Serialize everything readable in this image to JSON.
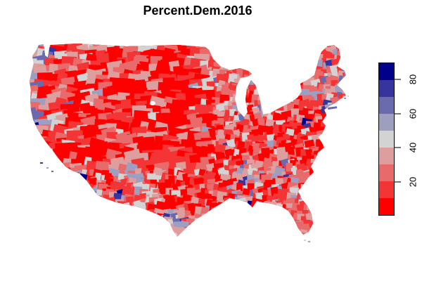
{
  "title": "Percent.Dem.2016",
  "chart_data": {
    "type": "heatmap",
    "subtype": "choropleth_map",
    "title": "Percent.Dem.2016",
    "geography": "United States, lower-48 county map",
    "variable": "Percent voting Democratic in 2016, by county",
    "legend": {
      "position": "right",
      "orientation": "vertical",
      "range": [
        0,
        90
      ],
      "n_color_bands": 9,
      "band_width": 10,
      "tick_values": [
        20,
        40,
        60,
        80
      ],
      "tick_labels": [
        "20",
        "40",
        "60",
        "80"
      ],
      "colors_low_to_high": [
        "#FF0000",
        "#F43535",
        "#E96A6A",
        "#DE9E9E",
        "#D3D3D3",
        "#9E9EC1",
        "#6A6AAF",
        "#35359D",
        "#00008B"
      ],
      "color_meaning": "bright red = low percent Democratic, light gray = ~40-50, dark navy = high percent Democratic"
    },
    "observed_pattern": [
      {
        "region": "Great Plains, Mountain West, rural Midwest and South",
        "approx_value": "10-30"
      },
      {
        "region": "Pacific coast counties (WA, OR, CA)",
        "approx_value": "50-75"
      },
      {
        "region": "Mississippi Delta and Southern Black Belt",
        "approx_value": "55-85"
      },
      {
        "region": "South Texas border counties",
        "approx_value": "55-80"
      },
      {
        "region": "Northeast / New England",
        "approx_value": "35-65"
      },
      {
        "region": "Major metro counties (Seattle, Bay Area, Los Angeles, Denver, Chicago, Detroit, DC, NYC, Boston, Atlanta)",
        "approx_value": "60-90"
      },
      {
        "region": "Northern Maine",
        "approx_value": "25-40"
      }
    ]
  },
  "colors": {
    "background": "#FFFFFF",
    "title_text": "#000000",
    "legend_border": "#000000",
    "tick_mark": "#777777",
    "tick_label_text": "#000000"
  }
}
